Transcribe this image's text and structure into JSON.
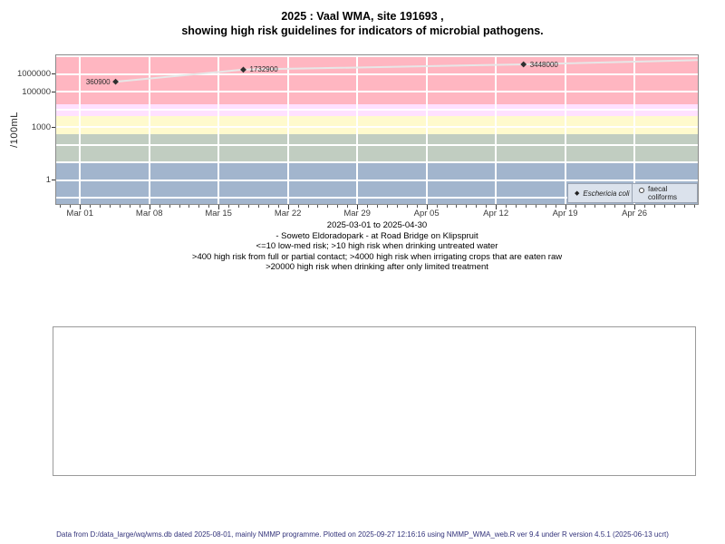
{
  "title": {
    "line1": "2025 : Vaal WMA, site 191693 ,",
    "line2": "showing high risk guidelines for indicators of microbial pathogens."
  },
  "chart_data": {
    "type": "line",
    "title": "2025 : Vaal WMA, site 191693 , showing high risk guidelines for indicators of microbial pathogens.",
    "xlabel": "",
    "ylabel": "/100mL",
    "x_axis": {
      "range_label": "2025-03-01 to 2025-04-30",
      "day_min": -2.4,
      "day_max": 62.4,
      "ticks": [
        {
          "label": "Mar 01",
          "day": 0
        },
        {
          "label": "Mar 08",
          "day": 7
        },
        {
          "label": "Mar 15",
          "day": 14
        },
        {
          "label": "Mar 22",
          "day": 21
        },
        {
          "label": "Mar 29",
          "day": 28
        },
        {
          "label": "Apr 05",
          "day": 35
        },
        {
          "label": "Apr 12",
          "day": 42
        },
        {
          "label": "Apr 19",
          "day": 49
        },
        {
          "label": "Apr 26",
          "day": 56
        }
      ]
    },
    "y_axis": {
      "scale": "log",
      "log_top": 7.05,
      "log_bottom": -1.35,
      "ticks": [
        {
          "value": 1000000,
          "label": "1000000"
        },
        {
          "value": 100000,
          "label": "100000"
        },
        {
          "value": 1000,
          "label": "1000"
        },
        {
          "value": 1,
          "label": "1"
        }
      ],
      "grid_decades": [
        -1,
        0,
        1,
        2,
        3,
        4,
        5,
        6,
        7
      ]
    },
    "series": [
      {
        "name": "Eschericia coli",
        "marker": "filled-diamond",
        "points": [
          {
            "day": 3.6,
            "date_approx": "2025-03-05",
            "value": 360900,
            "label": "360900",
            "label_side": "left"
          },
          {
            "day": 16.5,
            "date_approx": "2025-03-18",
            "value": 1732900,
            "label": "1732900",
            "label_side": "right"
          },
          {
            "day": 44.8,
            "date_approx": "2025-04-15",
            "value": 3448000,
            "label": "3448000",
            "label_side": "right"
          }
        ]
      },
      {
        "name": "faecal coliforms",
        "marker": "open-circle",
        "points": []
      }
    ],
    "line_exit_value": 6000000,
    "risk_bands": [
      {
        "range": [
          null,
          10
        ],
        "color": "#A2B5CD",
        "meaning": "<=10 low-med risk"
      },
      {
        "range": [
          10,
          400
        ],
        "color": "#C1CDC1",
        "meaning": ">10 high risk when drinking untreated water"
      },
      {
        "range": [
          400,
          4000
        ],
        "color": "#FFFACD",
        "meaning": ">400 high risk from full or partial contact"
      },
      {
        "range": [
          4000,
          20000
        ],
        "color": "#FFE1FF",
        "meaning": ">4000 high risk when irrigating crops that are eaten raw"
      },
      {
        "range": [
          20000,
          null
        ],
        "color": "#FFB6C1",
        "meaning": ">20000 high risk when drinking after only limited treatment"
      }
    ],
    "grid": true,
    "legend_position": "bottom-right-inside"
  },
  "legend": {
    "items": [
      {
        "label": "Eschericia coli",
        "marker": "filled-diamond"
      },
      {
        "label": "faecal coliforms",
        "marker": "open-circle"
      }
    ]
  },
  "captions": {
    "lines": [
      "2025-03-01 to 2025-04-30",
      "- Soweto Eldoradopark - at Road Bridge on Klipspruit",
      "<=10 low-med risk; >10 high risk when drinking untreated water",
      ">400 high risk from full or partial contact; >4000 high risk when irrigating crops that are eaten raw",
      ">20000 high risk when drinking after only limited treatment"
    ]
  },
  "footer": "Data from D:/data_large/wq/wms.db dated 2025-08-01, mainly NMMP programme. Plotted on 2025-09-27 12:16:16 using NMMP_WMA_web.R ver 9.4 under R version 4.5.1 (2025-06-13 ucrt)",
  "colors": {
    "line": "#e7e7e7",
    "marker": "#2f2f2f",
    "gridline": "#ffffff",
    "legend_bg": "#dbe2ec",
    "panel_border": "#8a8a8a",
    "footer_text": "#32327a"
  }
}
